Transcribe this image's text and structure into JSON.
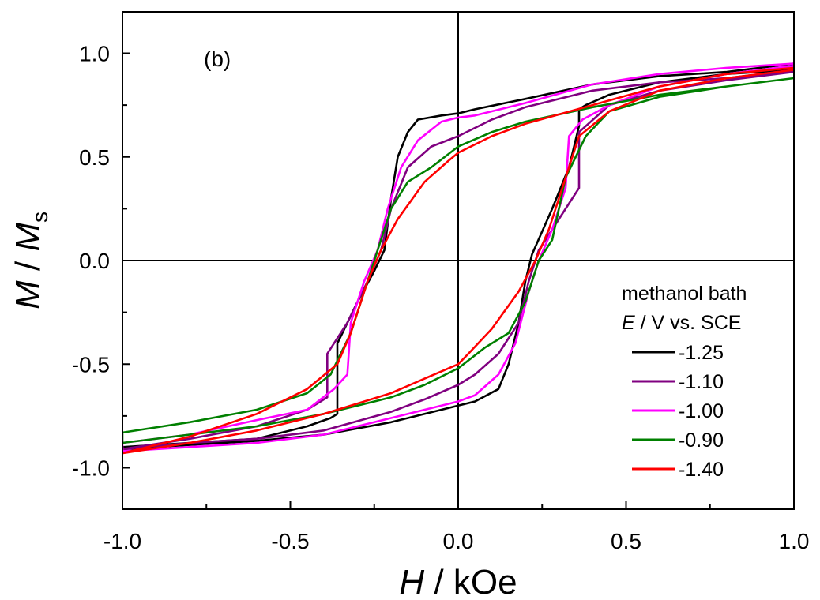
{
  "chart_data": {
    "type": "line",
    "panel_label": "(b)",
    "xlabel": {
      "symbol": "H",
      "unit": " / kOe"
    },
    "ylabel": {
      "symbol": "M",
      "sep": " / ",
      "symbol2": "M",
      "subscript": "s"
    },
    "xlim": [
      -1.0,
      1.0
    ],
    "ylim": [
      -1.2,
      1.2
    ],
    "xticks": [
      -1.0,
      -0.5,
      0.0,
      0.5,
      1.0
    ],
    "xtick_labels": [
      "-1.0",
      "-0.5",
      "0.0",
      "0.5",
      "1.0"
    ],
    "yticks": [
      1.0,
      0.5,
      0.0,
      -0.5,
      -1.0
    ],
    "ytick_labels": [
      "1.0",
      "0.5",
      "0.0",
      "-0.5",
      "-1.0"
    ],
    "legend": {
      "title_line1": "methanol bath",
      "title_line2_symbol": "E",
      "title_line2_rest": " / V vs. SCE",
      "placement": "right"
    },
    "series": [
      {
        "name": "-1.25",
        "color": "#000000",
        "upper": [
          [
            -1.0,
            -0.9
          ],
          [
            -0.8,
            -0.88
          ],
          [
            -0.6,
            -0.86
          ],
          [
            -0.45,
            -0.8
          ],
          [
            -0.38,
            -0.76
          ],
          [
            -0.36,
            -0.74
          ],
          [
            -0.36,
            -0.4
          ],
          [
            -0.3,
            -0.2
          ],
          [
            -0.25,
            -0.05
          ],
          [
            -0.22,
            0.05
          ],
          [
            -0.2,
            0.3
          ],
          [
            -0.18,
            0.5
          ],
          [
            -0.15,
            0.62
          ],
          [
            -0.12,
            0.68
          ],
          [
            -0.05,
            0.7
          ],
          [
            0.0,
            0.71
          ],
          [
            0.05,
            0.73
          ],
          [
            0.2,
            0.78
          ],
          [
            0.4,
            0.85
          ],
          [
            0.6,
            0.89
          ],
          [
            0.8,
            0.91
          ],
          [
            1.0,
            0.95
          ]
        ],
        "lower": [
          [
            1.0,
            0.92
          ],
          [
            0.8,
            0.9
          ],
          [
            0.6,
            0.86
          ],
          [
            0.45,
            0.8
          ],
          [
            0.38,
            0.75
          ],
          [
            0.36,
            0.73
          ],
          [
            0.36,
            0.65
          ],
          [
            0.33,
            0.45
          ],
          [
            0.28,
            0.25
          ],
          [
            0.22,
            0.03
          ],
          [
            0.2,
            -0.1
          ],
          [
            0.18,
            -0.3
          ],
          [
            0.15,
            -0.5
          ],
          [
            0.12,
            -0.62
          ],
          [
            0.05,
            -0.68
          ],
          [
            0.0,
            -0.7
          ],
          [
            -0.05,
            -0.72
          ],
          [
            -0.2,
            -0.78
          ],
          [
            -0.4,
            -0.84
          ],
          [
            -0.6,
            -0.87
          ],
          [
            -0.8,
            -0.89
          ],
          [
            -1.0,
            -0.91
          ]
        ]
      },
      {
        "name": "-1.10",
        "color": "#800080",
        "upper": [
          [
            -1.0,
            -0.91
          ],
          [
            -0.8,
            -0.86
          ],
          [
            -0.6,
            -0.8
          ],
          [
            -0.45,
            -0.72
          ],
          [
            -0.39,
            -0.66
          ],
          [
            -0.39,
            -0.45
          ],
          [
            -0.33,
            -0.3
          ],
          [
            -0.27,
            -0.1
          ],
          [
            -0.23,
            0.05
          ],
          [
            -0.2,
            0.25
          ],
          [
            -0.15,
            0.45
          ],
          [
            -0.08,
            0.55
          ],
          [
            0.0,
            0.6
          ],
          [
            0.1,
            0.68
          ],
          [
            0.2,
            0.74
          ],
          [
            0.4,
            0.82
          ],
          [
            0.6,
            0.86
          ],
          [
            0.8,
            0.88
          ],
          [
            1.0,
            0.92
          ]
        ],
        "lower": [
          [
            1.0,
            0.91
          ],
          [
            0.8,
            0.87
          ],
          [
            0.6,
            0.82
          ],
          [
            0.45,
            0.75
          ],
          [
            0.36,
            0.62
          ],
          [
            0.36,
            0.35
          ],
          [
            0.3,
            0.2
          ],
          [
            0.24,
            0.05
          ],
          [
            0.21,
            -0.1
          ],
          [
            0.18,
            -0.3
          ],
          [
            0.12,
            -0.45
          ],
          [
            0.05,
            -0.55
          ],
          [
            0.0,
            -0.6
          ],
          [
            -0.1,
            -0.67
          ],
          [
            -0.2,
            -0.73
          ],
          [
            -0.4,
            -0.82
          ],
          [
            -0.6,
            -0.86
          ],
          [
            -0.8,
            -0.88
          ],
          [
            -1.0,
            -0.91
          ]
        ]
      },
      {
        "name": "-1.00",
        "color": "#ff00ff",
        "upper": [
          [
            -1.0,
            -0.88
          ],
          [
            -0.8,
            -0.84
          ],
          [
            -0.6,
            -0.77
          ],
          [
            -0.45,
            -0.72
          ],
          [
            -0.37,
            -0.62
          ],
          [
            -0.33,
            -0.55
          ],
          [
            -0.32,
            -0.3
          ],
          [
            -0.28,
            -0.1
          ],
          [
            -0.24,
            0.05
          ],
          [
            -0.21,
            0.25
          ],
          [
            -0.17,
            0.45
          ],
          [
            -0.12,
            0.58
          ],
          [
            -0.05,
            0.67
          ],
          [
            0.0,
            0.69
          ],
          [
            0.05,
            0.7
          ],
          [
            0.2,
            0.76
          ],
          [
            0.4,
            0.85
          ],
          [
            0.6,
            0.9
          ],
          [
            0.8,
            0.93
          ],
          [
            1.0,
            0.95
          ]
        ],
        "lower": [
          [
            1.0,
            0.94
          ],
          [
            0.8,
            0.9
          ],
          [
            0.6,
            0.84
          ],
          [
            0.45,
            0.75
          ],
          [
            0.37,
            0.68
          ],
          [
            0.33,
            0.6
          ],
          [
            0.32,
            0.35
          ],
          [
            0.28,
            0.15
          ],
          [
            0.24,
            0.0
          ],
          [
            0.21,
            -0.15
          ],
          [
            0.17,
            -0.4
          ],
          [
            0.12,
            -0.55
          ],
          [
            0.05,
            -0.65
          ],
          [
            0.0,
            -0.68
          ],
          [
            -0.05,
            -0.7
          ],
          [
            -0.2,
            -0.76
          ],
          [
            -0.4,
            -0.84
          ],
          [
            -0.6,
            -0.88
          ],
          [
            -0.8,
            -0.9
          ],
          [
            -1.0,
            -0.92
          ]
        ]
      },
      {
        "name": "-0.90",
        "color": "#008000",
        "upper": [
          [
            -1.0,
            -0.83
          ],
          [
            -0.8,
            -0.78
          ],
          [
            -0.6,
            -0.72
          ],
          [
            -0.45,
            -0.64
          ],
          [
            -0.38,
            -0.55
          ],
          [
            -0.32,
            -0.35
          ],
          [
            -0.28,
            -0.15
          ],
          [
            -0.25,
            0.0
          ],
          [
            -0.2,
            0.25
          ],
          [
            -0.15,
            0.38
          ],
          [
            -0.08,
            0.45
          ],
          [
            0.0,
            0.55
          ],
          [
            0.1,
            0.62
          ],
          [
            0.2,
            0.67
          ],
          [
            0.4,
            0.74
          ],
          [
            0.6,
            0.8
          ],
          [
            0.8,
            0.84
          ],
          [
            1.0,
            0.88
          ]
        ],
        "lower": [
          [
            1.0,
            0.88
          ],
          [
            0.8,
            0.84
          ],
          [
            0.6,
            0.79
          ],
          [
            0.45,
            0.72
          ],
          [
            0.38,
            0.6
          ],
          [
            0.32,
            0.4
          ],
          [
            0.28,
            0.1
          ],
          [
            0.24,
            0.0
          ],
          [
            0.2,
            -0.2
          ],
          [
            0.15,
            -0.35
          ],
          [
            0.08,
            -0.42
          ],
          [
            0.0,
            -0.52
          ],
          [
            -0.1,
            -0.6
          ],
          [
            -0.2,
            -0.66
          ],
          [
            -0.4,
            -0.74
          ],
          [
            -0.6,
            -0.8
          ],
          [
            -0.8,
            -0.84
          ],
          [
            -1.0,
            -0.88
          ]
        ]
      },
      {
        "name": "-1.40",
        "color": "#ff0000",
        "upper": [
          [
            -1.0,
            -0.93
          ],
          [
            -0.8,
            -0.85
          ],
          [
            -0.6,
            -0.74
          ],
          [
            -0.45,
            -0.62
          ],
          [
            -0.36,
            -0.5
          ],
          [
            -0.32,
            -0.35
          ],
          [
            -0.27,
            -0.1
          ],
          [
            -0.23,
            0.05
          ],
          [
            -0.18,
            0.2
          ],
          [
            -0.1,
            0.38
          ],
          [
            -0.03,
            0.48
          ],
          [
            0.0,
            0.52
          ],
          [
            0.1,
            0.6
          ],
          [
            0.2,
            0.66
          ],
          [
            0.4,
            0.75
          ],
          [
            0.6,
            0.84
          ],
          [
            0.8,
            0.9
          ],
          [
            1.0,
            0.93
          ]
        ],
        "lower": [
          [
            1.0,
            0.92
          ],
          [
            0.8,
            0.88
          ],
          [
            0.6,
            0.82
          ],
          [
            0.45,
            0.72
          ],
          [
            0.36,
            0.6
          ],
          [
            0.32,
            0.4
          ],
          [
            0.27,
            0.15
          ],
          [
            0.23,
            0.0
          ],
          [
            0.18,
            -0.15
          ],
          [
            0.1,
            -0.33
          ],
          [
            0.03,
            -0.45
          ],
          [
            0.0,
            -0.5
          ],
          [
            -0.1,
            -0.57
          ],
          [
            -0.2,
            -0.64
          ],
          [
            -0.4,
            -0.74
          ],
          [
            -0.6,
            -0.82
          ],
          [
            -0.8,
            -0.88
          ],
          [
            -1.0,
            -0.93
          ]
        ]
      }
    ]
  }
}
